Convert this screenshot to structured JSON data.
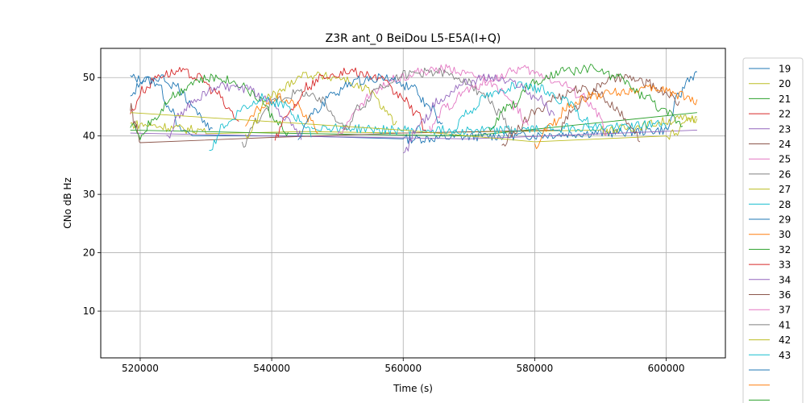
{
  "chart_data": {
    "type": "line",
    "title": "Z3R ant_0 BeiDou L5-E5A(I+Q)",
    "xlabel": "Time (s)",
    "ylabel": "CNo dB Hz",
    "xlim": [
      514000,
      609000
    ],
    "ylim": [
      2,
      55
    ],
    "x_ticks": [
      {
        "value": 520000,
        "label": "520000"
      },
      {
        "value": 540000,
        "label": "540000"
      },
      {
        "value": 560000,
        "label": "560000"
      },
      {
        "value": 580000,
        "label": "580000"
      },
      {
        "value": 600000,
        "label": "600000"
      }
    ],
    "y_ticks": [
      {
        "value": 10,
        "label": "10"
      },
      {
        "value": 20,
        "label": "20"
      },
      {
        "value": 30,
        "label": "30"
      },
      {
        "value": 40,
        "label": "40"
      },
      {
        "value": 50,
        "label": "50"
      }
    ],
    "grid": true,
    "legend_position": "right, outside plot (clipped at bottom)",
    "series": [
      {
        "name": "19",
        "color": "#1f77b4",
        "points": [
          [
            518500,
            50
          ],
          [
            520500,
            49.6
          ],
          [
            522500,
            49.2
          ],
          [
            524500,
            45
          ],
          [
            526000,
            41
          ],
          [
            528000,
            40.5
          ],
          [
            560000,
            39.5
          ],
          [
            575000,
            40
          ],
          [
            590000,
            40.5
          ],
          [
            600000,
            41
          ],
          [
            602000,
            47
          ],
          [
            603500,
            50
          ],
          [
            604700,
            50.5
          ]
        ]
      },
      {
        "name": "20",
        "color": "#bcbd22",
        "points": [
          [
            518500,
            42
          ],
          [
            530000,
            41
          ],
          [
            560000,
            40.5
          ],
          [
            590000,
            41
          ],
          [
            604700,
            43
          ]
        ]
      },
      {
        "name": "21",
        "color": "#2ca02c",
        "points": [
          [
            518500,
            41
          ],
          [
            540000,
            40.5
          ],
          [
            570000,
            40
          ],
          [
            604700,
            44
          ]
        ]
      },
      {
        "name": "22",
        "color": "#d62728",
        "points": [
          [
            518500,
            44
          ],
          [
            520500,
            48
          ],
          [
            523000,
            50.5
          ],
          [
            526000,
            51
          ],
          [
            529000,
            50
          ],
          [
            531500,
            47.5
          ],
          [
            533500,
            44.5
          ],
          [
            535000,
            42.5
          ]
        ]
      },
      {
        "name": "23",
        "color": "#9467bd",
        "points": [
          [
            518500,
            40.5
          ],
          [
            540000,
            40
          ],
          [
            570000,
            39.5
          ],
          [
            604700,
            41
          ]
        ]
      },
      {
        "name": "24",
        "color": "#8c564b",
        "points": [
          [
            518500,
            45
          ],
          [
            519200,
            42
          ],
          [
            520000,
            39
          ],
          [
            560000,
            40.5
          ],
          [
            583500,
            41
          ],
          [
            585500,
            44
          ],
          [
            588000,
            47
          ],
          [
            591000,
            49.5
          ],
          [
            594000,
            50
          ],
          [
            597000,
            49
          ],
          [
            600000,
            47.5
          ],
          [
            602000,
            45.5
          ]
        ]
      },
      {
        "name": "25",
        "color": "#e377c2",
        "points": [
          [
            564000,
            41
          ],
          [
            566500,
            45
          ],
          [
            570000,
            48
          ],
          [
            574000,
            50
          ],
          [
            578000,
            51.5
          ],
          [
            581000,
            50.5
          ],
          [
            584000,
            49
          ],
          [
            587000,
            47
          ],
          [
            589500,
            44
          ],
          [
            591000,
            40
          ]
        ]
      },
      {
        "name": "26",
        "color": "#7f7f7f",
        "points": [
          [
            535500,
            38.5
          ],
          [
            538000,
            43
          ],
          [
            541000,
            46.5
          ],
          [
            544500,
            47.5
          ],
          [
            547500,
            46
          ],
          [
            550000,
            43
          ],
          [
            551500,
            41
          ]
        ]
      },
      {
        "name": "27",
        "color": "#bcbd22",
        "points": [
          [
            536000,
            40
          ],
          [
            540000,
            47
          ],
          [
            545000,
            50.5
          ],
          [
            550000,
            50
          ],
          [
            554500,
            48
          ],
          [
            557000,
            45
          ],
          [
            559000,
            42
          ]
        ]
      },
      {
        "name": "28",
        "color": "#17becf",
        "points": [
          [
            546000,
            41.5
          ],
          [
            560000,
            41
          ],
          [
            575000,
            41
          ],
          [
            590000,
            41.5
          ],
          [
            600000,
            42
          ]
        ]
      },
      {
        "name": "29",
        "color": "#1f77b4",
        "points": [
          [
            518500,
            47
          ],
          [
            520500,
            49.5
          ],
          [
            523000,
            50
          ],
          [
            525500,
            48.5
          ],
          [
            527500,
            46
          ],
          [
            529500,
            43
          ],
          [
            531000,
            40.5
          ]
        ]
      },
      {
        "name": "30",
        "color": "#ff7f0e",
        "points": [
          [
            536000,
            42
          ],
          [
            538500,
            45
          ],
          [
            541000,
            46.5
          ],
          [
            543500,
            45.5
          ],
          [
            545500,
            43
          ],
          [
            547000,
            41
          ]
        ]
      },
      {
        "name": "32",
        "color": "#2ca02c",
        "points": [
          [
            518500,
            42
          ],
          [
            520000,
            40
          ],
          [
            522000,
            43
          ],
          [
            525000,
            47
          ],
          [
            528500,
            49.5
          ],
          [
            532000,
            50
          ],
          [
            535000,
            49
          ],
          [
            538000,
            46.5
          ],
          [
            540500,
            43
          ],
          [
            542500,
            40
          ]
        ]
      },
      {
        "name": "33",
        "color": "#d62728",
        "points": [
          [
            540500,
            40
          ],
          [
            542500,
            44
          ],
          [
            545500,
            48.5
          ],
          [
            548500,
            50.5
          ],
          [
            552000,
            51
          ],
          [
            556000,
            50
          ],
          [
            559500,
            47
          ],
          [
            562000,
            44
          ],
          [
            563500,
            41
          ]
        ]
      },
      {
        "name": "34",
        "color": "#9467bd",
        "points": [
          [
            524000,
            39.5
          ],
          [
            526000,
            43.5
          ],
          [
            528500,
            46.5
          ],
          [
            532000,
            48.5
          ],
          [
            536000,
            48
          ],
          [
            539500,
            46
          ],
          [
            542500,
            43
          ],
          [
            544500,
            40
          ]
        ]
      },
      {
        "name": "36",
        "color": "#8c564b",
        "points": [
          [
            575000,
            38
          ],
          [
            577000,
            41
          ],
          [
            580000,
            44
          ],
          [
            583000,
            46.5
          ],
          [
            586500,
            48
          ],
          [
            589500,
            47.5
          ],
          [
            592000,
            45
          ],
          [
            594500,
            42
          ],
          [
            596000,
            39.5
          ]
        ]
      },
      {
        "name": "37",
        "color": "#e377c2",
        "points": [
          [
            550000,
            40
          ],
          [
            552500,
            44
          ],
          [
            555500,
            47.5
          ],
          [
            559000,
            50
          ],
          [
            563000,
            51
          ],
          [
            567000,
            51.5
          ],
          [
            571000,
            50.5
          ],
          [
            574500,
            48
          ],
          [
            577000,
            45
          ],
          [
            579000,
            42
          ]
        ]
      },
      {
        "name": "41",
        "color": "#7f7f7f",
        "points": [
          [
            551000,
            41
          ],
          [
            553500,
            45
          ],
          [
            556500,
            48.5
          ],
          [
            560000,
            50.5
          ],
          [
            564500,
            51
          ],
          [
            568500,
            50
          ],
          [
            572000,
            47.5
          ],
          [
            574500,
            44
          ],
          [
            576500,
            41
          ]
        ]
      },
      {
        "name": "42",
        "color": "#bcbd22",
        "points": [
          [
            518500,
            44
          ],
          [
            560000,
            41
          ],
          [
            580000,
            39
          ],
          [
            600000,
            40
          ],
          [
            604700,
            43
          ]
        ]
      },
      {
        "name": "43",
        "color": "#17becf",
        "points": [
          [
            530500,
            38
          ],
          [
            533000,
            42
          ],
          [
            536000,
            45
          ],
          [
            538500,
            46.5
          ],
          [
            541500,
            45.5
          ],
          [
            544000,
            43
          ],
          [
            546000,
            40.5
          ]
        ]
      },
      {
        "name": "",
        "color": "#1f77b4",
        "points": [
          [
            544000,
            40
          ],
          [
            546500,
            44
          ],
          [
            549500,
            47.5
          ],
          [
            553000,
            49.5
          ],
          [
            557000,
            50
          ],
          [
            561000,
            48.5
          ],
          [
            564000,
            45
          ],
          [
            566000,
            41.5
          ]
        ]
      },
      {
        "name": "",
        "color": "#ff7f0e",
        "points": [
          [
            580000,
            38
          ],
          [
            582500,
            42
          ],
          [
            585500,
            45.5
          ],
          [
            589000,
            47
          ],
          [
            592500,
            47.5
          ],
          [
            596000,
            48
          ],
          [
            599500,
            48
          ],
          [
            602000,
            47
          ],
          [
            604700,
            46
          ]
        ]
      },
      {
        "name": "",
        "color": "#2ca02c",
        "points": [
          [
            573000,
            41
          ],
          [
            576000,
            45
          ],
          [
            580000,
            49
          ],
          [
            584500,
            51
          ],
          [
            588500,
            51.5
          ],
          [
            592500,
            50
          ],
          [
            596500,
            47
          ],
          [
            600000,
            44
          ],
          [
            602500,
            42
          ]
        ]
      },
      {
        "name": "",
        "color": "#17becf",
        "points": [
          [
            567000,
            40
          ],
          [
            569500,
            44
          ],
          [
            573000,
            47
          ],
          [
            577000,
            48.5
          ],
          [
            581000,
            48
          ],
          [
            584500,
            46
          ],
          [
            587500,
            43
          ],
          [
            589500,
            40.5
          ]
        ]
      },
      {
        "name": "",
        "color": "#9467bd",
        "points": [
          [
            560000,
            37
          ],
          [
            562500,
            42
          ],
          [
            565500,
            46
          ],
          [
            569000,
            49
          ],
          [
            573000,
            50
          ],
          [
            577000,
            49
          ],
          [
            580500,
            46.5
          ],
          [
            583000,
            43.5
          ]
        ]
      }
    ]
  }
}
